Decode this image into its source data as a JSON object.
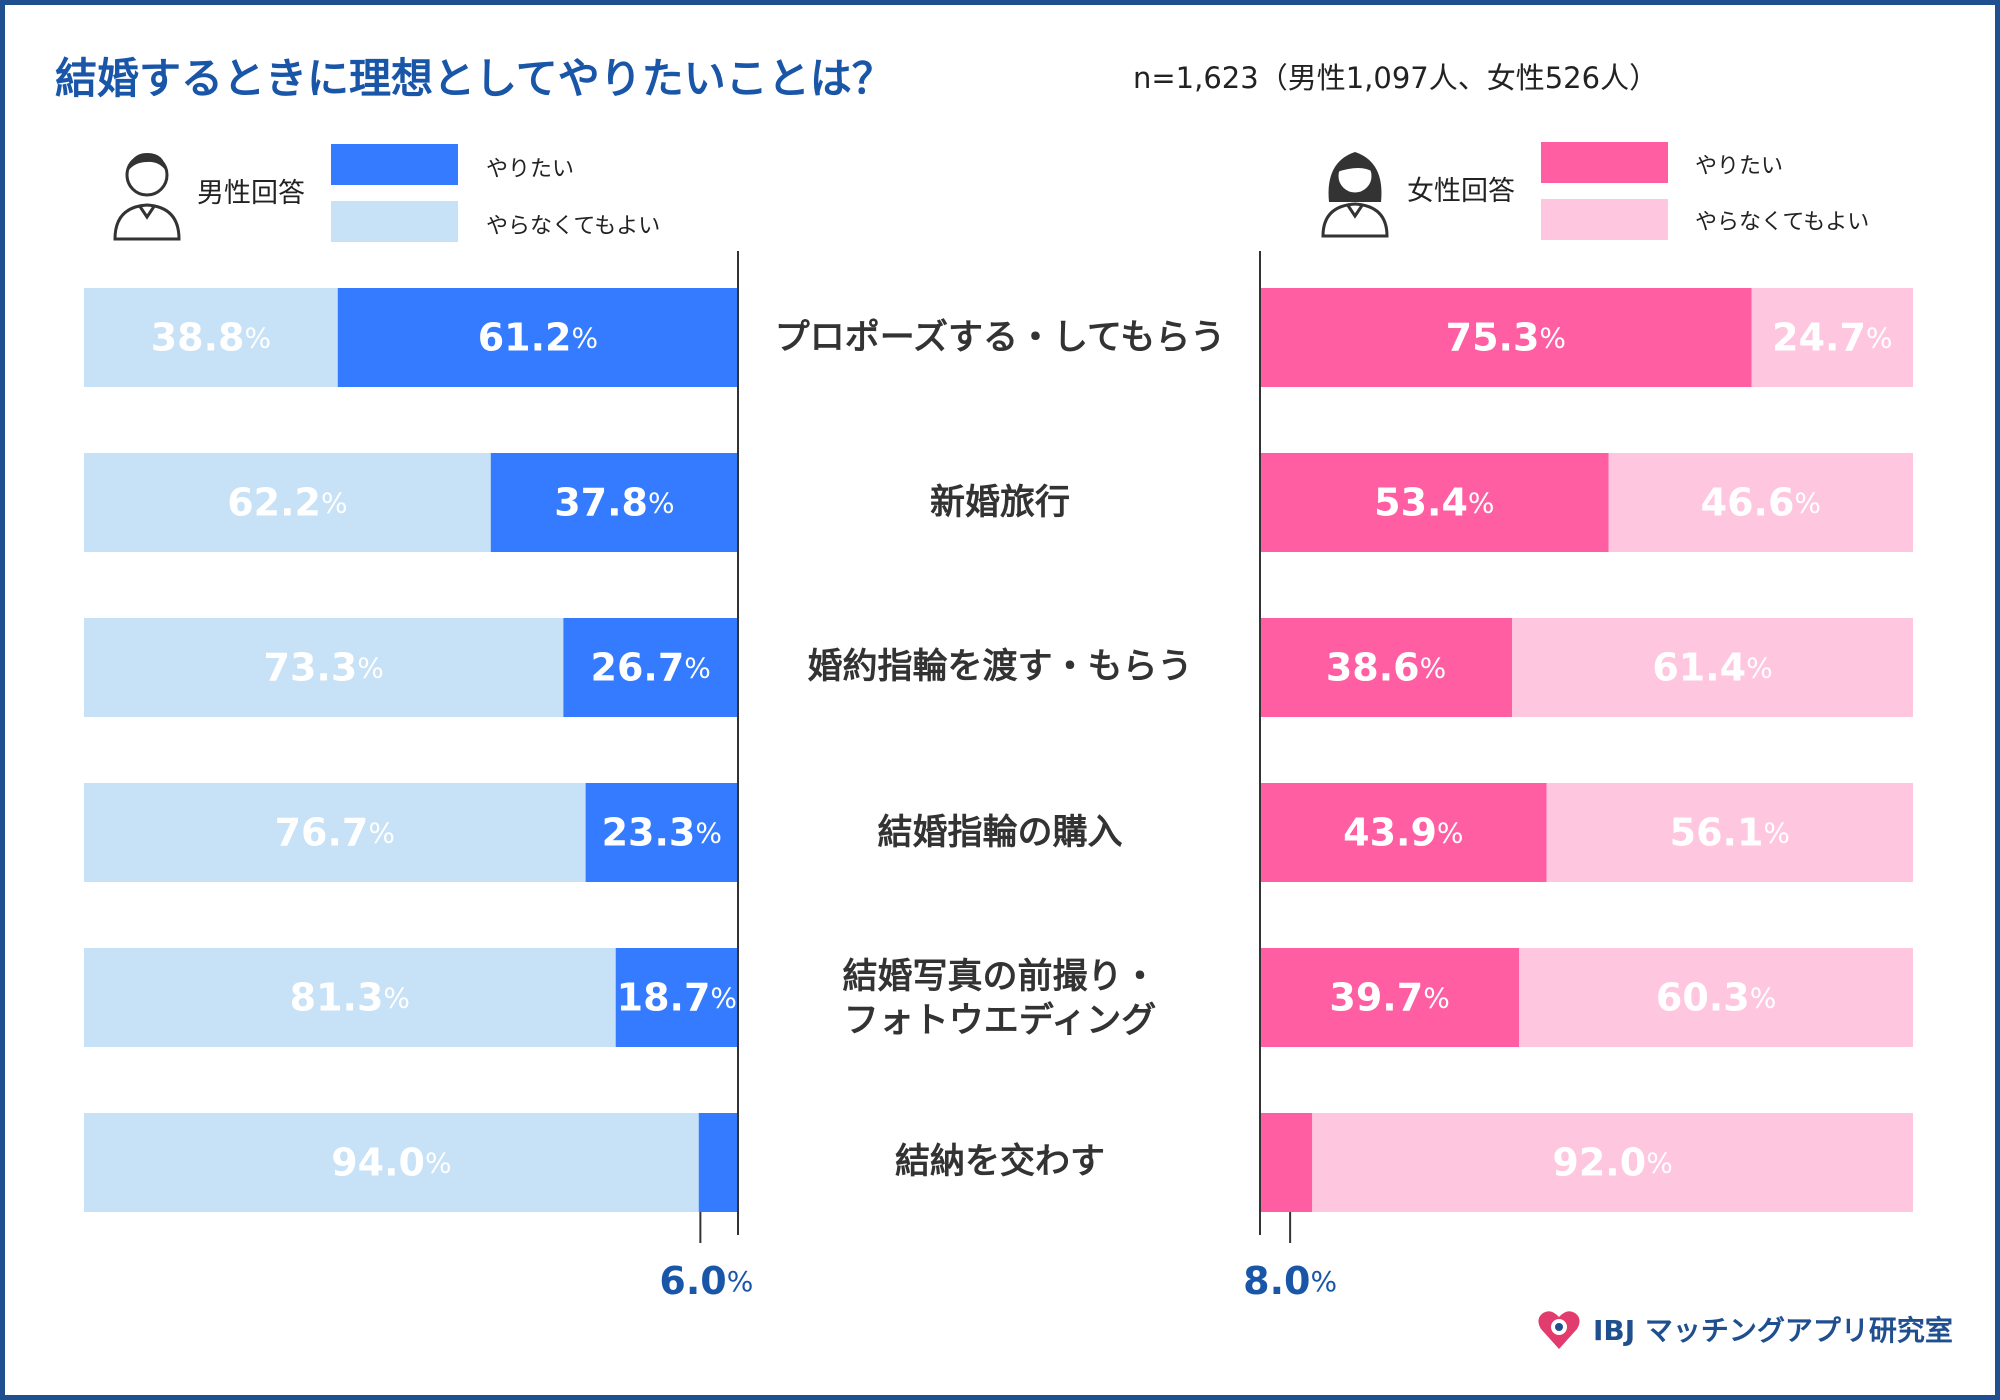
{
  "title": "結婚するときに理想としてやりたいことは？",
  "sample": "n=1,623（男性1,097人、女性526人）",
  "pct_unit": "%",
  "colors": {
    "title": "#1a56a8",
    "male_yes": "#347bff",
    "male_no": "#c7e1f7",
    "female_yes": "#ff5fa2",
    "female_no": "#ffc6e0"
  },
  "legend": {
    "male_label": "男性回答",
    "female_label": "女性回答",
    "yes_label": "やりたい",
    "no_label": "やらなくてもよい",
    "male_icon": "male-person-icon",
    "female_icon": "female-person-icon"
  },
  "chart_data": {
    "type": "bar",
    "orientation": "horizontal-stacked",
    "unit": "%",
    "categories": [
      "プロポーズする・してもらう",
      "新婚旅行",
      "婚約指輪を渡す・もらう",
      "結婚指輪の購入",
      "結婚写真の前撮り・\nフォトウエディング",
      "結納を交わす"
    ],
    "male": {
      "label": "男性回答",
      "series": [
        {
          "name": "やりたい",
          "values": [
            61.2,
            37.8,
            26.7,
            23.3,
            18.7,
            6.0
          ]
        },
        {
          "name": "やらなくてもよい",
          "values": [
            38.8,
            62.2,
            73.3,
            76.7,
            81.3,
            94.0
          ]
        }
      ]
    },
    "female": {
      "label": "女性回答",
      "series": [
        {
          "name": "やりたい",
          "values": [
            75.3,
            53.4,
            38.6,
            43.9,
            39.7,
            8.0
          ]
        },
        {
          "name": "やらなくてもよい",
          "values": [
            24.7,
            46.6,
            61.4,
            56.1,
            60.3,
            92.0
          ]
        }
      ]
    },
    "xlim": [
      0,
      100
    ]
  },
  "brand": {
    "text": "IBJ マッチングアプリ研究室",
    "icon": "heart-logo-icon"
  }
}
